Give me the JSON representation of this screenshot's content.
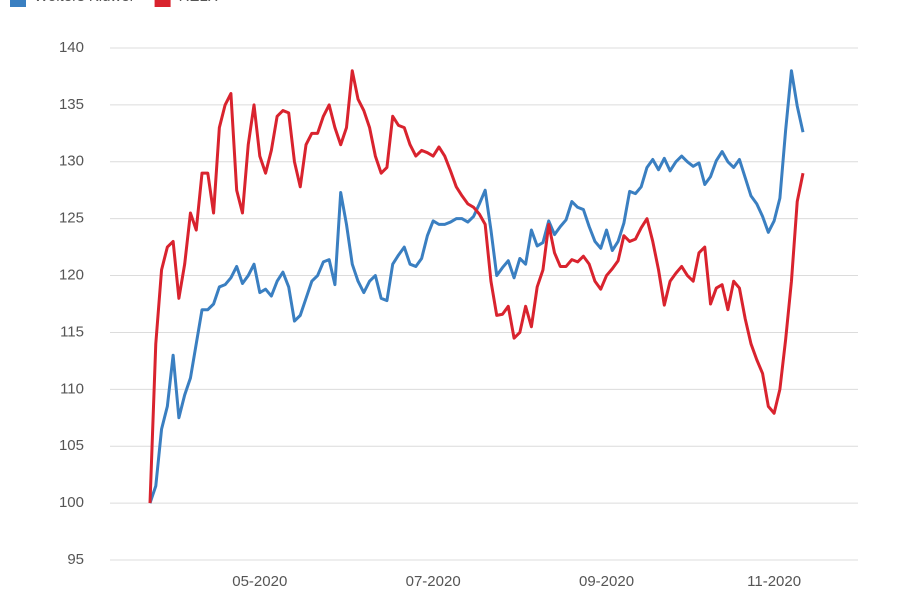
{
  "chart_data": {
    "type": "line",
    "categories": [
      null,
      null,
      null,
      null,
      null,
      null,
      null,
      null,
      null,
      null,
      null,
      null,
      null,
      null,
      null,
      null,
      null,
      null,
      null,
      "05-2020",
      null,
      null,
      null,
      null,
      null,
      null,
      null,
      null,
      null,
      null,
      null,
      null,
      null,
      null,
      null,
      null,
      null,
      null,
      null,
      null,
      null,
      null,
      null,
      null,
      null,
      null,
      null,
      null,
      null,
      "07-2020",
      null,
      null,
      null,
      null,
      null,
      null,
      null,
      null,
      null,
      null,
      null,
      null,
      null,
      null,
      null,
      null,
      null,
      null,
      null,
      null,
      null,
      null,
      null,
      null,
      null,
      null,
      null,
      null,
      null,
      "09-2020",
      null,
      null,
      null,
      null,
      null,
      null,
      null,
      null,
      null,
      null,
      null,
      null,
      null,
      null,
      null,
      null,
      null,
      null,
      null,
      null,
      null,
      null,
      null,
      null,
      null,
      null,
      null,
      null,
      "11-2020",
      null,
      null,
      null,
      null,
      null
    ],
    "series": [
      {
        "name": "Wolters Kluwer",
        "color": "#3a7fc1",
        "values": [
          100,
          101.5,
          106.5,
          108.5,
          113,
          107.5,
          109.5,
          111,
          114,
          117,
          117,
          117.5,
          119,
          119.2,
          119.8,
          120.8,
          119.3,
          120,
          121,
          118.5,
          118.8,
          118.2,
          119.5,
          120.3,
          119,
          116,
          116.5,
          118,
          119.5,
          120,
          121.2,
          121.4,
          119.2,
          127.3,
          124.5,
          121,
          119.5,
          118.5,
          119.5,
          120,
          118,
          117.8,
          121,
          121.8,
          122.5,
          121,
          120.8,
          121.5,
          123.5,
          124.8,
          124.5,
          124.5,
          124.7,
          125,
          125,
          124.7,
          125.2,
          126.3,
          127.5,
          124,
          120,
          120.7,
          121.3,
          119.8,
          121.5,
          121,
          124,
          122.6,
          122.9,
          124.8,
          123.6,
          124.3,
          124.9,
          126.5,
          126,
          125.8,
          124.3,
          123,
          122.4,
          124,
          122.2,
          123,
          124.6,
          127.4,
          127.2,
          127.8,
          129.5,
          130.2,
          129.3,
          130.3,
          129.2,
          130,
          130.5,
          130,
          129.6,
          129.9,
          128,
          128.7,
          130.1,
          130.9,
          130,
          129.5,
          130.2,
          128.6,
          127,
          126.3,
          125.2,
          123.8,
          124.8,
          126.8,
          132.8,
          138,
          134.9,
          132.6
        ]
      },
      {
        "name": "RELX",
        "color": "#d9232e",
        "values": [
          100,
          114,
          120.5,
          122.5,
          123,
          118,
          121,
          125.5,
          124,
          129,
          129,
          125.5,
          133,
          135,
          136,
          127.5,
          125.5,
          131.5,
          135,
          130.5,
          129,
          131,
          134,
          134.5,
          134.3,
          130,
          127.8,
          131.5,
          132.5,
          132.5,
          134,
          135,
          133,
          131.5,
          133,
          138,
          135.5,
          134.5,
          133,
          130.5,
          129,
          129.5,
          134,
          133.2,
          133,
          131.5,
          130.5,
          131,
          130.8,
          130.5,
          131.3,
          130.5,
          129.2,
          127.8,
          127,
          126.3,
          126,
          125.4,
          124.5,
          119.5,
          116.5,
          116.6,
          117.3,
          114.5,
          115,
          117.3,
          115.5,
          119,
          120.5,
          124.5,
          122,
          120.8,
          120.8,
          121.4,
          121.2,
          121.7,
          121,
          119.5,
          118.8,
          120,
          120.6,
          121.3,
          123.5,
          123,
          123.2,
          124.2,
          125,
          123,
          120.5,
          117.4,
          119.5,
          120.2,
          120.8,
          120,
          119.5,
          122,
          122.5,
          117.5,
          118.9,
          119.2,
          117,
          119.5,
          118.9,
          116.2,
          114,
          112.6,
          111.4,
          108.5,
          107.9,
          110,
          114.4,
          119.5,
          126.5,
          129
        ]
      }
    ],
    "ylim": [
      95,
      140
    ],
    "yticks": [
      95,
      100,
      105,
      110,
      115,
      120,
      125,
      130,
      135,
      140
    ],
    "grid": true,
    "legend": "top-left"
  }
}
